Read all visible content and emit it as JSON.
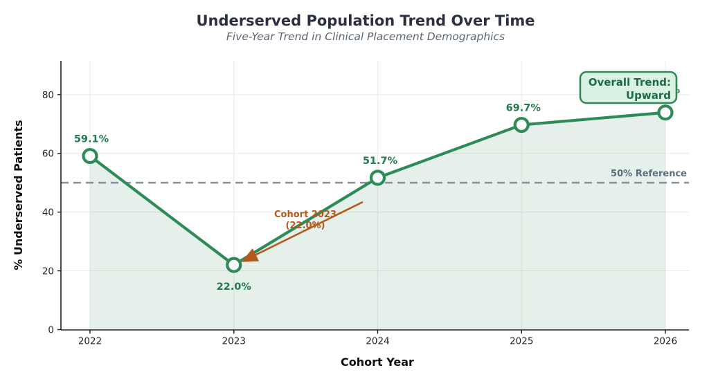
{
  "title": "Underserved Population Trend Over Time",
  "subtitle": "Five-Year Trend in Clinical Placement Demographics",
  "chart_data": {
    "type": "line",
    "x": [
      "2022",
      "2023",
      "2024",
      "2025",
      "2026"
    ],
    "series": [
      {
        "name": "% Underserved Patients",
        "values": [
          59.1,
          22.0,
          51.7,
          69.7,
          73.9
        ]
      }
    ],
    "point_labels": [
      "59.1%",
      "22.0%",
      "51.7%",
      "69.7%",
      "73.9%"
    ],
    "xlabel": "Cohort Year",
    "ylabel": "% Underserved Patients",
    "ylim": [
      0,
      91.5
    ],
    "yticks": [
      0,
      20,
      40,
      60,
      80
    ],
    "grid": true,
    "legend": "none",
    "area_fill": true,
    "reference_line": {
      "value": 50,
      "label": "50% Reference"
    },
    "annotation": {
      "line1": "Cohort 2023",
      "line2": "(22.0%)",
      "target_x": "2023",
      "target_y": 22.0
    },
    "trend_box": {
      "line1": "Overall Trend:",
      "line2": "Upward"
    }
  },
  "colors": {
    "line_green": "#2e8b57",
    "marker_fill": "#ffffff",
    "area_green": "#2e8b57",
    "point_label_green": "#227a4e",
    "reference_gray": "#8593a3",
    "reference_label_gray": "#5d6b7a",
    "annotation_orange": "#b4591b",
    "title_navy": "#2a2f42",
    "subtitle_gray": "#5a6472",
    "box_fill": "#d9f2e3",
    "box_border": "#2e8b57",
    "box_text": "#1d6b45",
    "axis_dark": "#1f1f1f",
    "grid_gray": "#ececec"
  }
}
